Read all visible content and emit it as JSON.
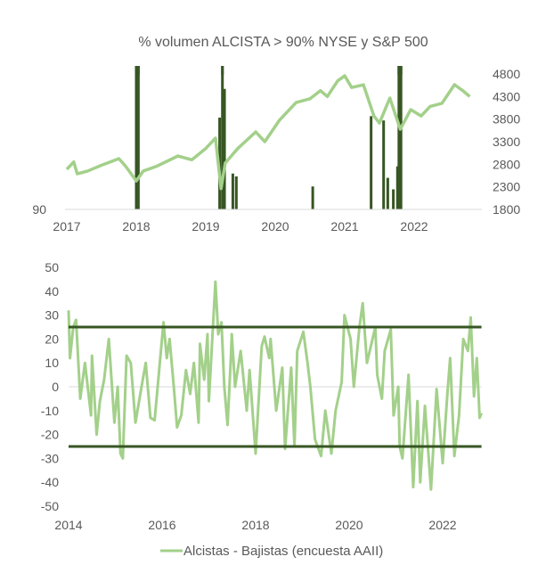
{
  "colors": {
    "line": "#a3d08a",
    "bars": "#375623",
    "bands": "#375623",
    "axis": "#d9d9d9",
    "text": "#595959"
  },
  "chart_data": [
    {
      "type": "bar+line",
      "title": "% volumen ALCISTA > 90% NYSE y S&P 500",
      "xlabel": "",
      "ylabel_left": "",
      "ylabel_right": "",
      "x_ticks": [
        "2017",
        "2018",
        "2019",
        "2020",
        "2021",
        "2022"
      ],
      "xlim": [
        2017,
        2022.83
      ],
      "left_axis": {
        "ticks": [
          "90"
        ],
        "ylim": [
          90,
          100
        ]
      },
      "right_axis": {
        "ticks": [
          "4800",
          "4300",
          "3800",
          "3300",
          "2800",
          "2300",
          "1800"
        ],
        "ylim": [
          1800,
          4800
        ]
      },
      "bars": {
        "name": "% volumen alcista > 90% NYSE",
        "points": [
          [
            2018.0,
            100
          ],
          [
            2018.03,
            100
          ],
          [
            2019.2,
            96.4
          ],
          [
            2019.24,
            100
          ],
          [
            2019.27,
            98.4
          ],
          [
            2019.39,
            92.5
          ],
          [
            2019.44,
            92.3
          ],
          [
            2020.54,
            91.6
          ],
          [
            2021.38,
            96.5
          ],
          [
            2021.56,
            96.2
          ],
          [
            2021.62,
            92.2
          ],
          [
            2021.7,
            91.4
          ],
          [
            2021.76,
            93
          ],
          [
            2021.78,
            100
          ],
          [
            2021.81,
            100
          ]
        ]
      },
      "line": {
        "name": "S&P 500",
        "points": [
          [
            2017.0,
            2688
          ],
          [
            2017.1,
            2852
          ],
          [
            2017.15,
            2589
          ],
          [
            2017.3,
            2650
          ],
          [
            2017.5,
            2780
          ],
          [
            2017.75,
            2925
          ],
          [
            2017.85,
            2750
          ],
          [
            2018.0,
            2431
          ],
          [
            2018.1,
            2650
          ],
          [
            2018.3,
            2760
          ],
          [
            2018.6,
            2984
          ],
          [
            2018.8,
            2900
          ],
          [
            2019.0,
            3150
          ],
          [
            2019.14,
            3379
          ],
          [
            2019.22,
            2260
          ],
          [
            2019.28,
            2826
          ],
          [
            2019.46,
            3148
          ],
          [
            2019.72,
            3517
          ],
          [
            2019.85,
            3300
          ],
          [
            2020.06,
            3774
          ],
          [
            2020.3,
            4168
          ],
          [
            2020.5,
            4250
          ],
          [
            2020.65,
            4431
          ],
          [
            2020.75,
            4300
          ],
          [
            2020.9,
            4650
          ],
          [
            2021.0,
            4760
          ],
          [
            2021.1,
            4500
          ],
          [
            2021.27,
            4560
          ],
          [
            2021.42,
            3872
          ],
          [
            2021.5,
            3714
          ],
          [
            2021.65,
            4267
          ],
          [
            2021.8,
            3576
          ],
          [
            2021.95,
            4010
          ],
          [
            2022.1,
            3870
          ],
          [
            2022.23,
            4080
          ],
          [
            2022.4,
            4150
          ],
          [
            2022.58,
            4563
          ],
          [
            2022.7,
            4430
          ],
          [
            2022.8,
            4300
          ]
        ]
      }
    },
    {
      "type": "line",
      "title": "",
      "x_ticks": [
        "2014",
        "2016",
        "2018",
        "2020",
        "2022"
      ],
      "xlim": [
        2014,
        2022.83
      ],
      "y_ticks": [
        "50",
        "40",
        "30",
        "20",
        "10",
        "0",
        "-10",
        "-20",
        "-30",
        "-40",
        "-50"
      ],
      "ylim": [
        -50,
        50
      ],
      "reference_lines": [
        25,
        -25
      ],
      "legend": {
        "label": "Alcistas - Bajistas (encuesta AAII)",
        "position": "bottom"
      },
      "series": [
        {
          "name": "Alcistas - Bajistas (encuesta AAII)",
          "points": [
            [
              2014.0,
              32
            ],
            [
              2014.03,
              12
            ],
            [
              2014.1,
              25
            ],
            [
              2014.16,
              28
            ],
            [
              2014.25,
              -5
            ],
            [
              2014.35,
              10
            ],
            [
              2014.48,
              -12
            ],
            [
              2014.5,
              13
            ],
            [
              2014.6,
              -20
            ],
            [
              2014.67,
              -6
            ],
            [
              2014.76,
              3
            ],
            [
              2014.86,
              20
            ],
            [
              2014.98,
              -15
            ],
            [
              2015.05,
              0
            ],
            [
              2015.11,
              -28
            ],
            [
              2015.16,
              -30
            ],
            [
              2015.2,
              -8
            ],
            [
              2015.24,
              13
            ],
            [
              2015.33,
              10
            ],
            [
              2015.43,
              -15
            ],
            [
              2015.56,
              0
            ],
            [
              2015.65,
              10
            ],
            [
              2015.75,
              -13
            ],
            [
              2015.84,
              -14
            ],
            [
              2016.03,
              27
            ],
            [
              2016.1,
              12
            ],
            [
              2016.16,
              20
            ],
            [
              2016.25,
              0
            ],
            [
              2016.32,
              -17
            ],
            [
              2016.41,
              -12
            ],
            [
              2016.51,
              7
            ],
            [
              2016.6,
              -3
            ],
            [
              2016.68,
              10
            ],
            [
              2016.78,
              -15
            ],
            [
              2016.81,
              18
            ],
            [
              2016.9,
              3
            ],
            [
              2016.97,
              22
            ],
            [
              2017.0,
              -6
            ],
            [
              2017.14,
              44
            ],
            [
              2017.2,
              22
            ],
            [
              2017.27,
              27
            ],
            [
              2017.33,
              0
            ],
            [
              2017.4,
              -16
            ],
            [
              2017.47,
              12
            ],
            [
              2017.49,
              22
            ],
            [
              2017.56,
              0
            ],
            [
              2017.68,
              15
            ],
            [
              2017.81,
              -10
            ],
            [
              2017.87,
              7
            ],
            [
              2018.0,
              -28
            ],
            [
              2018.13,
              17
            ],
            [
              2018.19,
              21
            ],
            [
              2018.29,
              12
            ],
            [
              2018.32,
              20
            ],
            [
              2018.44,
              -10
            ],
            [
              2018.57,
              8
            ],
            [
              2018.63,
              -26
            ],
            [
              2018.76,
              8
            ],
            [
              2018.83,
              -25
            ],
            [
              2018.89,
              15
            ],
            [
              2019.02,
              23
            ],
            [
              2019.11,
              10
            ],
            [
              2019.17,
              0
            ],
            [
              2019.27,
              -22
            ],
            [
              2019.4,
              -29
            ],
            [
              2019.49,
              -10
            ],
            [
              2019.62,
              -28
            ],
            [
              2019.71,
              -10
            ],
            [
              2019.84,
              2
            ],
            [
              2019.9,
              30
            ],
            [
              2020.03,
              20
            ],
            [
              2020.1,
              0
            ],
            [
              2020.22,
              25
            ],
            [
              2020.29,
              35
            ],
            [
              2020.38,
              10
            ],
            [
              2020.56,
              25
            ],
            [
              2020.6,
              5
            ],
            [
              2020.7,
              -5
            ],
            [
              2020.76,
              15
            ],
            [
              2020.89,
              24
            ],
            [
              2020.95,
              -12
            ],
            [
              2021.05,
              0
            ],
            [
              2021.08,
              -25
            ],
            [
              2021.14,
              -30
            ],
            [
              2021.27,
              5
            ],
            [
              2021.37,
              -42
            ],
            [
              2021.46,
              -6
            ],
            [
              2021.52,
              -40
            ],
            [
              2021.62,
              -8
            ],
            [
              2021.75,
              -43
            ],
            [
              2021.87,
              -1
            ],
            [
              2022.0,
              -32
            ],
            [
              2022.1,
              -3
            ],
            [
              2022.16,
              12
            ],
            [
              2022.25,
              -29
            ],
            [
              2022.35,
              -12
            ],
            [
              2022.44,
              20
            ],
            [
              2022.54,
              15
            ],
            [
              2022.6,
              29
            ],
            [
              2022.67,
              -4
            ],
            [
              2022.73,
              12
            ],
            [
              2022.79,
              -13
            ],
            [
              2022.83,
              -11
            ]
          ]
        }
      ]
    }
  ]
}
